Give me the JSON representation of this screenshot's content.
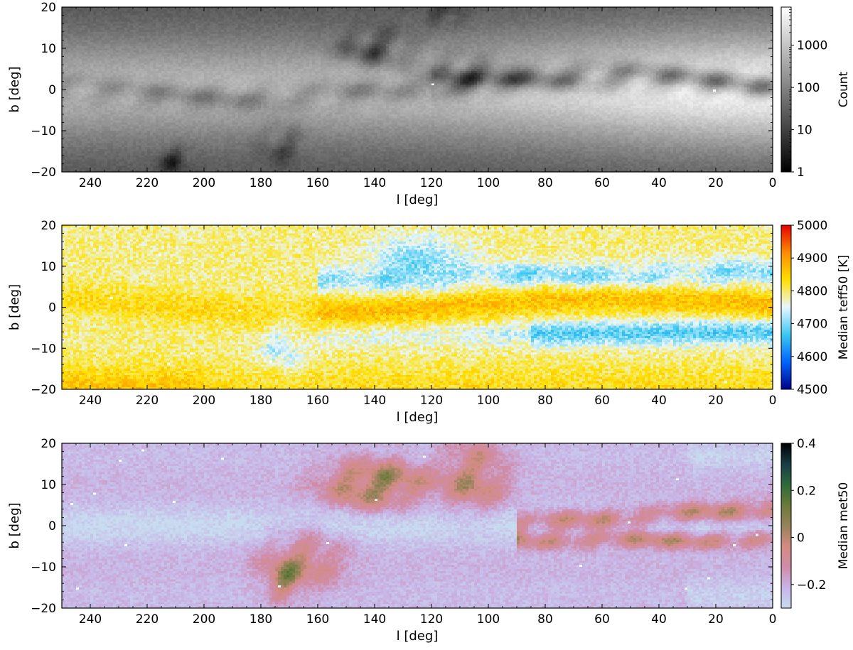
{
  "chart_data": [
    {
      "type": "heatmap",
      "xlabel": "l  [deg]",
      "ylabel": "b  [deg]",
      "xlim": [
        250,
        0
      ],
      "ylim": [
        -20,
        20
      ],
      "xticks": [
        240,
        220,
        200,
        180,
        160,
        140,
        120,
        100,
        80,
        60,
        40,
        20,
        0
      ],
      "yticks": [
        20,
        10,
        0,
        -10,
        -20
      ],
      "xtick_labels": [
        "240",
        "220",
        "200",
        "180",
        "160",
        "140",
        "120",
        "100",
        "80",
        "60",
        "40",
        "20",
        "0"
      ],
      "ytick_labels": [
        "20",
        "10",
        "0",
        "−10",
        "−20"
      ],
      "colorbar": {
        "label": "Count",
        "scale": "log",
        "range": [
          1,
          8000
        ],
        "ticks": [
          1,
          10,
          100,
          1000
        ],
        "tick_labels": [
          "1",
          "10",
          "100",
          "1000"
        ],
        "colormap": [
          "#000000",
          "#ffffff"
        ]
      },
      "features": {
        "background": "bright plane near b=0 increasing toward l=0, darker at high |b|",
        "dark_dust_lanes": [
          {
            "l": 20,
            "b": 0
          },
          {
            "l": 40,
            "b": 1
          },
          {
            "l": 60,
            "b": 0
          },
          {
            "l": 80,
            "b": 0
          },
          {
            "l": 95,
            "b": 3
          },
          {
            "l": 110,
            "b": 4
          },
          {
            "l": 140,
            "b": 10
          },
          {
            "l": 170,
            "b": -12
          },
          {
            "l": 210,
            "b": -18
          }
        ]
      }
    },
    {
      "type": "heatmap",
      "xlabel": "l  [deg]",
      "ylabel": "b  [deg]",
      "xlim": [
        250,
        0
      ],
      "ylim": [
        -20,
        20
      ],
      "xticks": [
        240,
        220,
        200,
        180,
        160,
        140,
        120,
        100,
        80,
        60,
        40,
        20,
        0
      ],
      "yticks": [
        20,
        10,
        0,
        -10,
        -20
      ],
      "xtick_labels": [
        "240",
        "220",
        "200",
        "180",
        "160",
        "140",
        "120",
        "100",
        "80",
        "60",
        "40",
        "20",
        "0"
      ],
      "ytick_labels": [
        "20",
        "10",
        "0",
        "−10",
        "−20"
      ],
      "colorbar": {
        "label": "Median teff50  [K]",
        "scale": "linear",
        "range": [
          4500,
          5000
        ],
        "ticks": [
          4500,
          4600,
          4700,
          4800,
          4900,
          5000
        ],
        "tick_labels": [
          "4500",
          "4600",
          "4700",
          "4800",
          "4900",
          "5000"
        ],
        "colormap": [
          "#00008c",
          "#0064ff",
          "#3cc8f0",
          "#e8f6ff",
          "#ffe000",
          "#ff8c00",
          "#e60000"
        ]
      },
      "features": {
        "plane_value_K": 4870,
        "off_plane_value_K": 4790,
        "cool_bands_K": 4670,
        "cool_band_b": [
          9,
          -7
        ]
      }
    },
    {
      "type": "heatmap",
      "xlabel": "l  [deg]",
      "ylabel": "b  [deg]",
      "xlim": [
        250,
        0
      ],
      "ylim": [
        -20,
        20
      ],
      "xticks": [
        240,
        220,
        200,
        180,
        160,
        140,
        120,
        100,
        80,
        60,
        40,
        20,
        0
      ],
      "yticks": [
        20,
        10,
        0,
        -10,
        -20
      ],
      "xtick_labels": [
        "240",
        "220",
        "200",
        "180",
        "160",
        "140",
        "120",
        "100",
        "80",
        "60",
        "40",
        "20",
        "0"
      ],
      "ytick_labels": [
        "20",
        "10",
        "0",
        "−10",
        "−20"
      ],
      "colorbar": {
        "label": "Median met50",
        "scale": "linear",
        "range": [
          -0.3,
          0.4
        ],
        "ticks": [
          -0.2,
          0,
          0.2,
          0.4
        ],
        "tick_labels": [
          "−0.2",
          "0",
          "0.2",
          "0.4"
        ],
        "colormap": [
          "#c8dcf0",
          "#c8b4e6",
          "#d08ca8",
          "#d28c82",
          "#96825a",
          "#6a7a3a",
          "#2e6a3a",
          "#183c46",
          "#000000"
        ]
      },
      "features": {
        "plane_value": -0.28,
        "off_plane_value": -0.2,
        "metal_rich_bands_value": 0.05,
        "metal_rich_band_b": [
          5,
          -4
        ]
      }
    }
  ]
}
